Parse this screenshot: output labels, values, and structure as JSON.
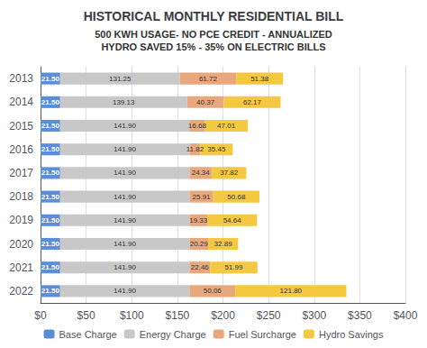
{
  "chart_data": {
    "type": "bar",
    "orientation": "horizontal",
    "stacked": true,
    "data_labels": true,
    "grid": true,
    "legend": "bottom",
    "title": "HISTORICAL MONTHLY RESIDENTIAL BILL",
    "subtitle": [
      "500 KWH USAGE- NO PCE CREDIT - ANNUALIZED",
      "HYDRO SAVED 15% - 35% ON ELECTRIC BILLS"
    ],
    "categories": [
      "2013",
      "2014",
      "2015",
      "2016",
      "2017",
      "2018",
      "2019",
      "2020",
      "2021",
      "2022"
    ],
    "series": [
      {
        "name": "Base Charge",
        "color": "#5B8DD9",
        "values": [
          21.5,
          21.5,
          21.5,
          21.5,
          21.5,
          21.5,
          21.5,
          21.5,
          21.5,
          21.5
        ],
        "value_labels": [
          "21.50",
          "21.50",
          "21.50",
          "21.50",
          "21.50",
          "21.50",
          "21.50",
          "21.50",
          "21.50",
          "21.50"
        ]
      },
      {
        "name": "Energy Charge",
        "color": "#C8C8C8",
        "values": [
          131.25,
          139.13,
          141.9,
          141.9,
          141.9,
          141.9,
          141.9,
          141.9,
          141.9,
          141.9
        ],
        "value_labels": [
          "131.25",
          "139.13",
          "141.90",
          "141.90",
          "141.90",
          "141.90",
          "141.90",
          "141.90",
          "141.90",
          "141.90"
        ]
      },
      {
        "name": "Fuel Surcharge",
        "color": "#E8A87C",
        "values": [
          61.72,
          40.37,
          16.68,
          11.82,
          24.34,
          25.91,
          19.33,
          20.29,
          22.46,
          50.06
        ],
        "value_labels": [
          "61.72",
          "40.37",
          "16.68",
          "11.82",
          "24.34",
          "25.91",
          "19.33",
          "20.29",
          "22.46",
          "50.06"
        ]
      },
      {
        "name": "Hydro Savings",
        "color": "#F5C842",
        "values": [
          51.38,
          62.17,
          47.01,
          35.45,
          37.82,
          50.68,
          54.64,
          32.89,
          51.99,
          121.8
        ],
        "value_labels": [
          "51.38",
          "62.17",
          "47.01",
          "35.45",
          "37.82",
          "50.68",
          "54.64",
          "32.89",
          "51.99",
          "121.80"
        ]
      }
    ],
    "xlim": [
      0,
      400
    ],
    "xticks": [
      {
        "value": 0,
        "label": "$0"
      },
      {
        "value": 50,
        "label": "$50"
      },
      {
        "value": 100,
        "label": "$100"
      },
      {
        "value": 150,
        "label": "$150"
      },
      {
        "value": 200,
        "label": "$200"
      },
      {
        "value": 250,
        "label": "$250"
      },
      {
        "value": 300,
        "label": "$300"
      },
      {
        "value": 350,
        "label": "$350"
      },
      {
        "value": 400,
        "label": "$400"
      }
    ]
  }
}
